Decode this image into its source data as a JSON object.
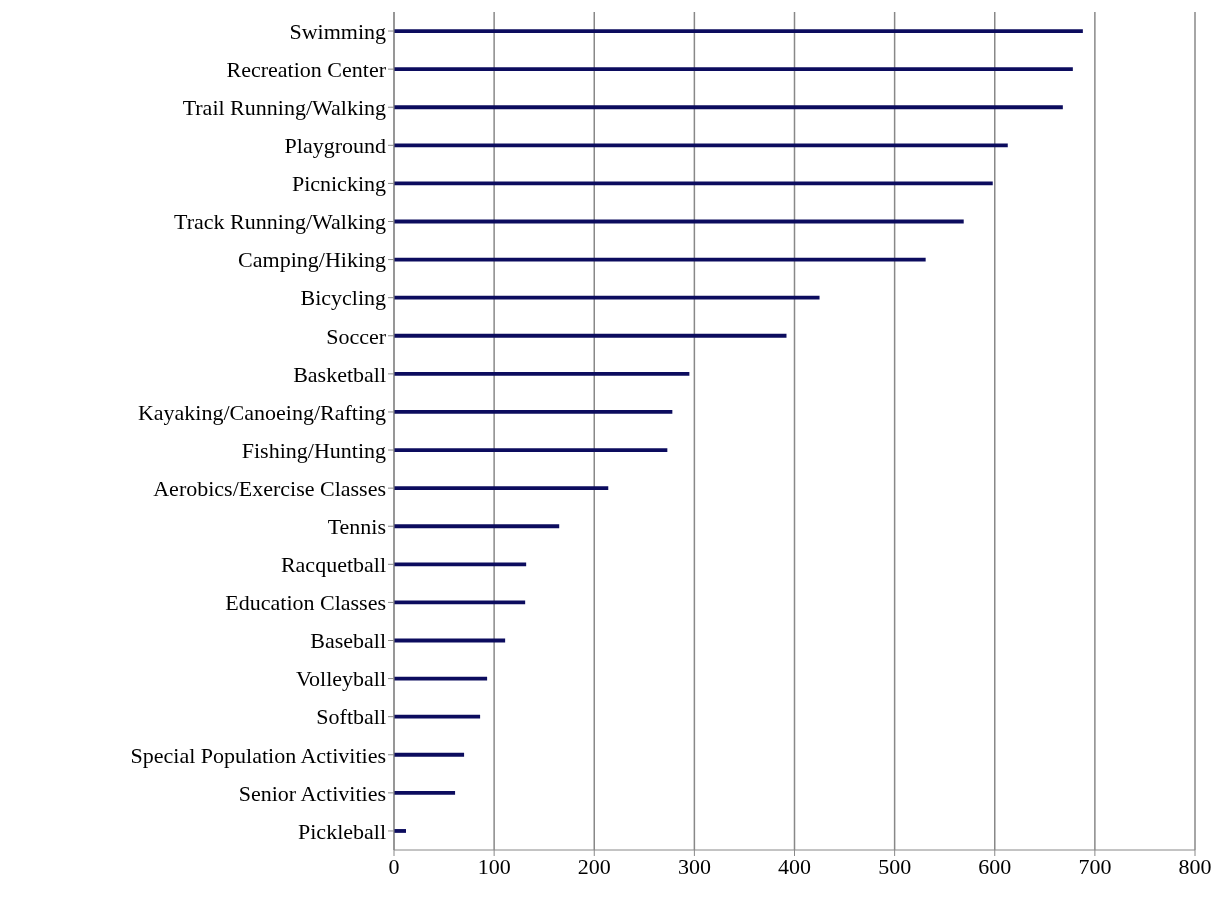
{
  "chart_data": {
    "type": "bar",
    "orientation": "horizontal",
    "categories": [
      "Swimming",
      "Recreation Center",
      "Trail Running/Walking",
      "Playground",
      "Picnicking",
      "Track Running/Walking",
      "Camping/Hiking",
      "Bicycling",
      "Soccer",
      "Basketball",
      "Kayaking/Canoeing/Rafting",
      "Fishing/Hunting",
      "Aerobics/Exercise Classes",
      "Tennis",
      "Racquetball",
      "Education Classes",
      "Baseball",
      "Volleyball",
      "Softball",
      "Special Population Activities",
      "Senior Activities",
      "Pickleball"
    ],
    "values": [
      688,
      678,
      668,
      613,
      598,
      569,
      531,
      425,
      392,
      295,
      278,
      273,
      214,
      165,
      132,
      131,
      111,
      93,
      86,
      70,
      61,
      12
    ],
    "color": "#0c0c5e",
    "xlim": [
      0,
      800
    ],
    "xticks": [
      0,
      100,
      200,
      300,
      400,
      500,
      600,
      700,
      800
    ],
    "grid": "x"
  }
}
